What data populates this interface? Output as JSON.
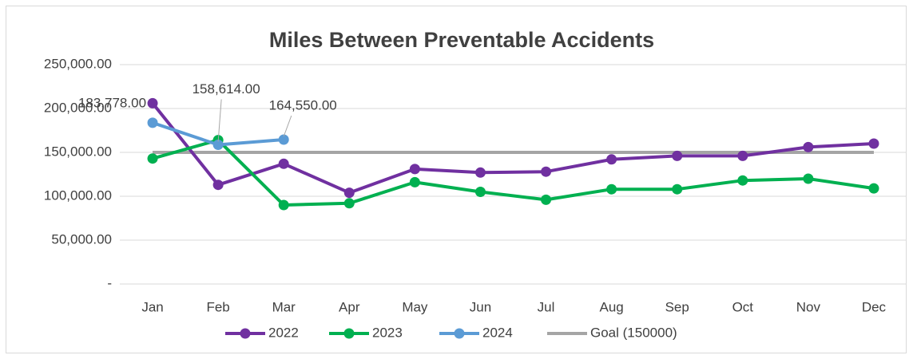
{
  "chart_data": {
    "type": "line",
    "title": "Miles Between Preventable Accidents",
    "categories": [
      "Jan",
      "Feb",
      "Mar",
      "Apr",
      "May",
      "Jun",
      "Jul",
      "Aug",
      "Sep",
      "Oct",
      "Nov",
      "Dec"
    ],
    "series": [
      {
        "name": "2022",
        "color": "#7030a0",
        "markers": true,
        "values": [
          206000,
          113000,
          137000,
          104000,
          131000,
          127000,
          128000,
          142000,
          146000,
          146000,
          156000,
          160000
        ]
      },
      {
        "name": "2023",
        "color": "#00b050",
        "markers": true,
        "values": [
          143000,
          164000,
          90000,
          92000,
          116000,
          105000,
          96000,
          108000,
          108000,
          118000,
          120000,
          109000
        ]
      },
      {
        "name": "2024",
        "color": "#5b9bd5",
        "markers": true,
        "values": [
          183778,
          158614,
          164550,
          null,
          null,
          null,
          null,
          null,
          null,
          null,
          null,
          null
        ],
        "value_labels": [
          "183,778.00",
          "158,614.00",
          "164,550.00",
          null,
          null,
          null,
          null,
          null,
          null,
          null,
          null,
          null
        ]
      },
      {
        "name": "Goal (150000)",
        "color": "#a5a5a5",
        "markers": false,
        "values": [
          150000,
          150000,
          150000,
          150000,
          150000,
          150000,
          150000,
          150000,
          150000,
          150000,
          150000,
          150000
        ]
      }
    ],
    "ylim": [
      0,
      250000
    ],
    "yticks": [
      {
        "value": 0,
        "label": "-"
      },
      {
        "value": 50000,
        "label": "50,000.00"
      },
      {
        "value": 100000,
        "label": "100,000.00"
      },
      {
        "value": 150000,
        "label": "150,000.00"
      },
      {
        "value": 200000,
        "label": "200,000.00"
      },
      {
        "value": 250000,
        "label": "250,000.00"
      }
    ],
    "grid": true,
    "legend": "bottom"
  }
}
